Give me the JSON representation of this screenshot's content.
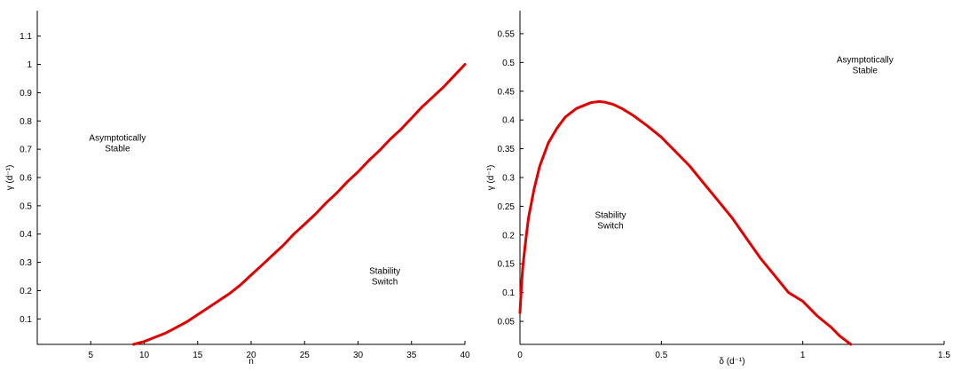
{
  "colors": {
    "curve": "#e00000",
    "axis": "#000000",
    "background": "#ffffff"
  },
  "chart_data": [
    {
      "type": "line",
      "title": "",
      "xlabel": "n",
      "ylabel": "γ (d⁻¹)",
      "xlim": [
        0,
        40
      ],
      "ylim": [
        0.01,
        1.19
      ],
      "xticks": [
        5,
        10,
        15,
        20,
        25,
        30,
        35,
        40
      ],
      "yticks": [
        0.1,
        0.2,
        0.3,
        0.4,
        0.5,
        0.6,
        0.7,
        0.8,
        0.9,
        1,
        1.1
      ],
      "grid": false,
      "annotations": [
        {
          "lines": [
            "Asymptotically",
            "Stable"
          ],
          "x": 7.5,
          "y": 0.73
        },
        {
          "lines": [
            "Stability",
            "Switch"
          ],
          "x": 32.5,
          "y": 0.26
        }
      ],
      "series": [
        {
          "color": "#e00000",
          "x": [
            9,
            10,
            11,
            12,
            13,
            14,
            15,
            16,
            17,
            18,
            19,
            20,
            21,
            22,
            23,
            24,
            25,
            26,
            27,
            28,
            29,
            30,
            31,
            32,
            33,
            34,
            35,
            36,
            37,
            38,
            39,
            40
          ],
          "y": [
            0.01,
            0.02,
            0.035,
            0.05,
            0.07,
            0.09,
            0.115,
            0.14,
            0.165,
            0.19,
            0.22,
            0.255,
            0.29,
            0.325,
            0.36,
            0.4,
            0.435,
            0.47,
            0.51,
            0.545,
            0.585,
            0.62,
            0.66,
            0.695,
            0.735,
            0.77,
            0.81,
            0.85,
            0.885,
            0.92,
            0.96,
            1.0
          ]
        }
      ]
    },
    {
      "type": "line",
      "title": "",
      "xlabel": "δ (d⁻¹)",
      "ylabel": "γ (d⁻¹)",
      "xlim": [
        0,
        1.5
      ],
      "ylim": [
        0.01,
        0.59
      ],
      "xticks": [
        0,
        0.5,
        1,
        1.5
      ],
      "yticks": [
        0.05,
        0.1,
        0.15,
        0.2,
        0.25,
        0.3,
        0.35,
        0.4,
        0.45,
        0.5,
        0.55
      ],
      "grid": false,
      "annotations": [
        {
          "lines": [
            "Asymptotically",
            "Stable"
          ],
          "x": 1.22,
          "y": 0.5
        },
        {
          "lines": [
            "Stability",
            "Switch"
          ],
          "x": 0.32,
          "y": 0.23
        }
      ],
      "series": [
        {
          "color": "#e00000",
          "x": [
            0,
            0.005,
            0.01,
            0.02,
            0.03,
            0.05,
            0.07,
            0.1,
            0.13,
            0.16,
            0.2,
            0.25,
            0.28,
            0.3,
            0.33,
            0.36,
            0.4,
            0.45,
            0.5,
            0.55,
            0.6,
            0.65,
            0.7,
            0.75,
            0.8,
            0.85,
            0.9,
            0.95,
            1.0,
            1.05,
            1.1,
            1.13,
            1.17
          ],
          "y": [
            0.065,
            0.11,
            0.145,
            0.19,
            0.23,
            0.28,
            0.32,
            0.36,
            0.385,
            0.405,
            0.42,
            0.43,
            0.432,
            0.431,
            0.427,
            0.42,
            0.408,
            0.39,
            0.37,
            0.345,
            0.32,
            0.29,
            0.26,
            0.23,
            0.195,
            0.16,
            0.13,
            0.1,
            0.085,
            0.06,
            0.04,
            0.025,
            0.01
          ]
        }
      ]
    }
  ]
}
